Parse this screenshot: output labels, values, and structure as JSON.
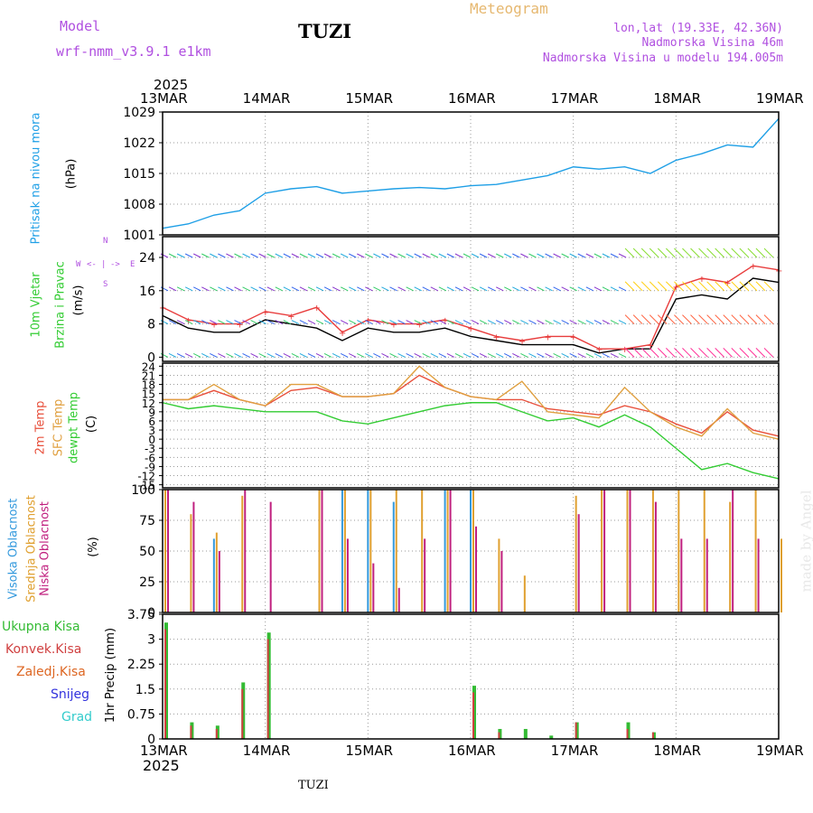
{
  "header": {
    "model_label": "Model",
    "model_name": "wrf-nmm_v3.9.1  e1km",
    "station": "TUZI",
    "product": "Meteogram",
    "lonlat": "lon,lat (19.33E, 42.36N)",
    "altitude": "Nadmorska Visina 46m",
    "model_altitude": "Nadmorska Visina u modelu 194.005m",
    "footer_station": "TUZI",
    "credit": "made by Angel",
    "year": "2025"
  },
  "x_axis": {
    "ticks": [
      "13MAR",
      "14MAR",
      "15MAR",
      "16MAR",
      "17MAR",
      "18MAR",
      "19MAR"
    ]
  },
  "colors": {
    "pressure": "#1e9fe6",
    "wind_speed": "#000000",
    "gust": "#e83c3c",
    "t2m": "#e8503c",
    "sfc": "#e0a040",
    "dewpt": "#33cc33",
    "high_cloud": "#3399dd",
    "mid_cloud": "#e0a030",
    "low_cloud": "#c0207f",
    "precip_total": "#33bb33",
    "precip_conv": "#d04040",
    "precip_grid": "#dd6622",
    "snow": "#3333dd",
    "graupel": "#33cccc",
    "purple_text": "#b050e0",
    "orange_text": "#e6b870"
  },
  "panels": {
    "pressure": {
      "title": "Pritisak na nivou mora",
      "unit": "(hPa)"
    },
    "wind": {
      "title1": "10m Vjetar",
      "title2": "Brzina i Pravac",
      "unit": "(m/s)",
      "compass": [
        "W",
        "<-",
        "|",
        "->",
        "E",
        "S",
        "N"
      ]
    },
    "temp": {
      "t2m": "2m Temp",
      "sfc": "SFC Temp",
      "dew": "dewpt Temp",
      "unit": "(C)"
    },
    "cloud": {
      "high": "Visoka Oblacnost",
      "mid": "Srednja Oblacnost",
      "low": "Niska Oblacnost",
      "unit": "(%)"
    },
    "precip": {
      "total": "Ukupna Kisa",
      "conv": "Konvek.Kisa",
      "grid": "Zaledj.Kisa",
      "snow": "Snijeg",
      "graupel": "Grad",
      "unit": "1hr Precip (mm)"
    }
  },
  "chart_data": [
    {
      "type": "line",
      "title": "",
      "ylabel": "(hPa)",
      "ylim": [
        1001,
        1029
      ],
      "yticks": [
        "1029",
        "1022",
        "1015",
        "1008",
        "1001"
      ],
      "x": [
        "13MAR",
        "13MAR06",
        "13MAR12",
        "13MAR18",
        "14MAR",
        "14MAR06",
        "14MAR12",
        "14MAR18",
        "15MAR",
        "15MAR06",
        "15MAR12",
        "15MAR18",
        "16MAR",
        "16MAR06",
        "16MAR12",
        "16MAR18",
        "17MAR",
        "17MAR06",
        "17MAR12",
        "17MAR18",
        "18MAR",
        "18MAR06",
        "18MAR12",
        "18MAR18",
        "19MAR"
      ],
      "series": [
        {
          "name": "",
          "values": [
            1002.5,
            1003.5,
            1005.5,
            1006.5,
            1010.5,
            1011.5,
            1012.0,
            1010.5,
            1011.0,
            1011.5,
            1011.8,
            1011.5,
            1012.2,
            1012.5,
            1013.5,
            1014.5,
            1016.5,
            1016.0,
            1016.5,
            1015.0,
            1018.0,
            1019.5,
            1021.5,
            1021.0,
            1027.5
          ]
        }
      ]
    },
    {
      "type": "line",
      "title": "",
      "ylabel": "(m/s)",
      "ylim": [
        -1,
        29
      ],
      "yticks": [
        "24",
        "16",
        "8",
        "0"
      ],
      "x": [
        "13MAR",
        "13MAR06",
        "13MAR12",
        "13MAR18",
        "14MAR",
        "14MAR06",
        "14MAR12",
        "14MAR18",
        "15MAR",
        "15MAR06",
        "15MAR12",
        "15MAR18",
        "16MAR",
        "16MAR06",
        "16MAR12",
        "16MAR18",
        "17MAR",
        "17MAR06",
        "17MAR12",
        "17MAR18",
        "18MAR",
        "18MAR06",
        "18MAR12",
        "18MAR18",
        "19MAR"
      ],
      "series": [
        {
          "name": "",
          "values": [
            10,
            7,
            6,
            6,
            9,
            8,
            7,
            4,
            7,
            6,
            6,
            7,
            5,
            4,
            3,
            3,
            3,
            1,
            2,
            2,
            14,
            15,
            14,
            19,
            18
          ]
        },
        {
          "name": "",
          "values": [
            12,
            9,
            8,
            8,
            11,
            10,
            12,
            6,
            9,
            8,
            8,
            9,
            7,
            5,
            4,
            5,
            5,
            2,
            2,
            3,
            17,
            19,
            18,
            22,
            21
          ]
        }
      ],
      "barb_rows": [
        0,
        8,
        16,
        24
      ]
    },
    {
      "type": "line",
      "title": "",
      "ylabel": "(C)",
      "ylim": [
        -16,
        25
      ],
      "yticks": [
        "24",
        "21",
        "18",
        "15",
        "12",
        "9",
        "6",
        "3",
        "0",
        "-3",
        "-6",
        "-9",
        "-12",
        "-15"
      ],
      "x": [
        "13MAR",
        "13MAR06",
        "13MAR12",
        "13MAR18",
        "14MAR",
        "14MAR06",
        "14MAR12",
        "14MAR18",
        "15MAR",
        "15MAR06",
        "15MAR12",
        "15MAR18",
        "16MAR",
        "16MAR06",
        "16MAR12",
        "16MAR18",
        "17MAR",
        "17MAR06",
        "17MAR12",
        "17MAR18",
        "18MAR",
        "18MAR06",
        "18MAR12",
        "18MAR18",
        "19MAR"
      ],
      "series": [
        {
          "name": "2m Temp",
          "values": [
            13,
            13,
            16,
            13,
            11,
            16,
            17,
            14,
            14,
            15,
            21,
            17,
            14,
            13,
            13,
            10,
            9,
            8,
            11,
            9,
            5,
            2,
            9,
            3,
            1
          ]
        },
        {
          "name": "SFC Temp",
          "values": [
            13,
            13,
            18,
            13,
            11,
            18,
            18,
            14,
            14,
            15,
            24,
            17,
            14,
            13,
            19,
            9,
            8,
            7,
            17,
            9,
            4,
            1,
            10,
            2,
            0
          ]
        },
        {
          "name": "dewpt Temp",
          "values": [
            12,
            10,
            11,
            10,
            9,
            9,
            9,
            6,
            5,
            7,
            9,
            11,
            12,
            12,
            9,
            6,
            7,
            4,
            8,
            4,
            -3,
            -10,
            -8,
            -11,
            -13
          ]
        }
      ]
    },
    {
      "type": "bar",
      "title": "",
      "ylabel": "(%)",
      "ylim": [
        0,
        100
      ],
      "yticks": [
        "100",
        "75",
        "50",
        "25",
        "0"
      ],
      "x": [
        "13MAR",
        "13MAR06",
        "13MAR12",
        "13MAR18",
        "14MAR",
        "14MAR06",
        "14MAR12",
        "14MAR18",
        "15MAR",
        "15MAR06",
        "15MAR12",
        "15MAR18",
        "16MAR",
        "16MAR06",
        "16MAR12",
        "16MAR18",
        "17MAR",
        "17MAR06",
        "17MAR12",
        "17MAR18",
        "18MAR",
        "18MAR06",
        "18MAR12",
        "18MAR18",
        "19MAR"
      ],
      "series": [
        {
          "name": "Visoka Oblacnost",
          "values": [
            0,
            0,
            60,
            0,
            0,
            0,
            0,
            100,
            100,
            90,
            0,
            100,
            100,
            0,
            0,
            0,
            0,
            0,
            0,
            0,
            0,
            0,
            0,
            0,
            0
          ]
        },
        {
          "name": "Srednja Oblacnost",
          "values": [
            100,
            80,
            65,
            95,
            0,
            0,
            100,
            100,
            100,
            100,
            100,
            100,
            100,
            60,
            30,
            0,
            95,
            100,
            100,
            100,
            100,
            100,
            90,
            100,
            60
          ]
        },
        {
          "name": "Niska Oblacnost",
          "values": [
            100,
            90,
            50,
            100,
            90,
            0,
            100,
            60,
            40,
            20,
            60,
            100,
            70,
            50,
            0,
            0,
            80,
            100,
            100,
            90,
            60,
            60,
            100,
            60,
            0
          ]
        }
      ]
    },
    {
      "type": "bar",
      "title": "",
      "ylabel": "1hr Precip (mm)",
      "ylim": [
        0,
        3.75
      ],
      "yticks": [
        "3.75",
        "3",
        "2.25",
        "1.5",
        "0.75",
        "0"
      ],
      "x": [
        "13MAR",
        "13MAR06",
        "13MAR12",
        "13MAR18",
        "14MAR",
        "14MAR06",
        "14MAR12",
        "14MAR18",
        "15MAR",
        "15MAR06",
        "15MAR12",
        "15MAR18",
        "16MAR",
        "16MAR06",
        "16MAR12",
        "16MAR18",
        "17MAR",
        "17MAR06",
        "17MAR12",
        "17MAR18",
        "18MAR",
        "18MAR06",
        "18MAR12",
        "18MAR18",
        "19MAR"
      ],
      "series": [
        {
          "name": "Ukupna Kisa",
          "values": [
            3.5,
            0.5,
            0.4,
            1.7,
            3.2,
            0,
            0,
            0,
            0,
            0,
            0,
            0,
            1.6,
            0.3,
            0.3,
            0.1,
            0.5,
            0,
            0.5,
            0.2,
            0,
            0,
            0,
            0,
            0
          ]
        },
        {
          "name": "Konvek.Kisa",
          "values": [
            3.3,
            0.4,
            0.3,
            1.5,
            3.0,
            0,
            0,
            0,
            0,
            0,
            0,
            0,
            1.4,
            0.2,
            0.0,
            0.0,
            0.5,
            0,
            0.3,
            0.2,
            0,
            0,
            0,
            0,
            0
          ]
        }
      ]
    }
  ]
}
